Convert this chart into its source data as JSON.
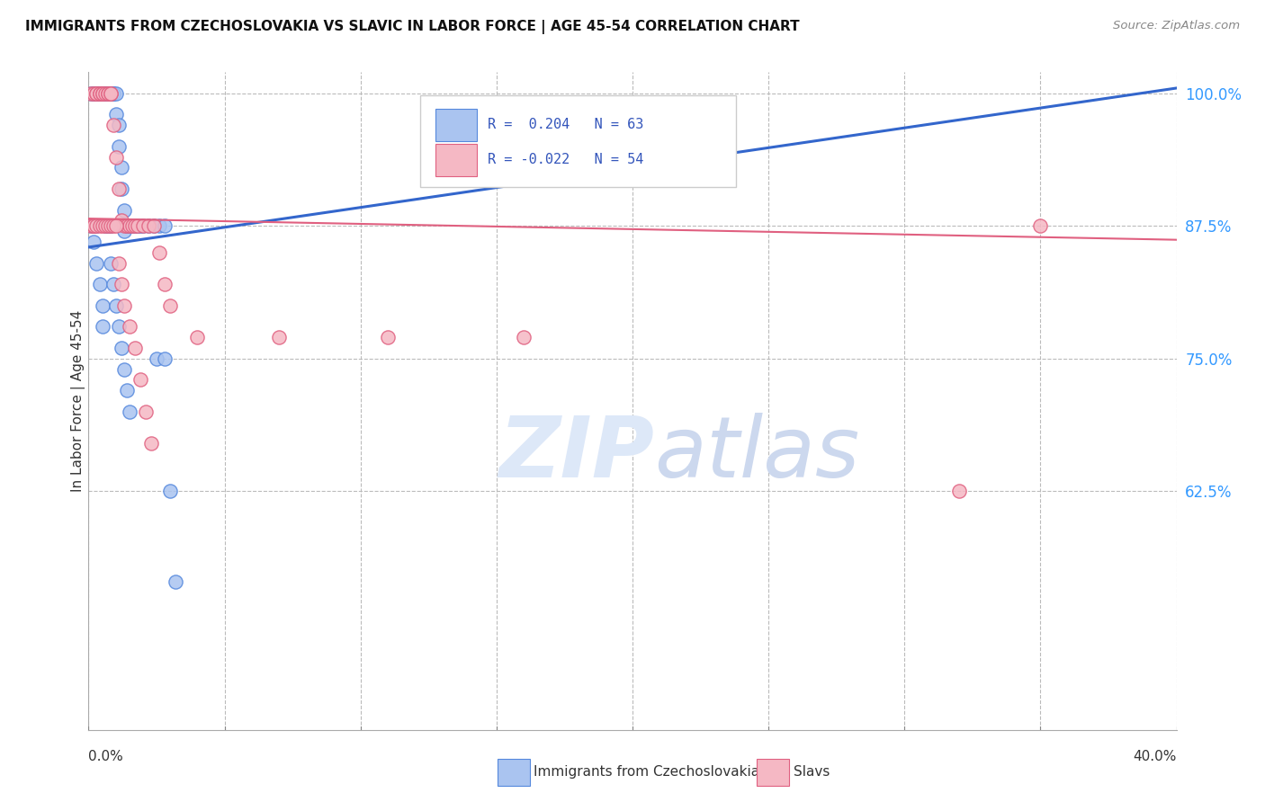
{
  "title": "IMMIGRANTS FROM CZECHOSLOVAKIA VS SLAVIC IN LABOR FORCE | AGE 45-54 CORRELATION CHART",
  "source": "Source: ZipAtlas.com",
  "ylabel": "In Labor Force | Age 45-54",
  "right_ytick_vals": [
    1.0,
    0.875,
    0.75,
    0.625
  ],
  "right_ytick_labels": [
    "100.0%",
    "87.5%",
    "75.0%",
    "62.5%"
  ],
  "xmin": 0.0,
  "xmax": 0.4,
  "ymin": 0.4,
  "ymax": 1.02,
  "legend_r1": "R =  0.204",
  "legend_n1": "N = 63",
  "legend_r2": "R = -0.022",
  "legend_n2": "N = 54",
  "blue_fill": "#aac4f0",
  "blue_edge": "#5588dd",
  "pink_fill": "#f5b8c4",
  "pink_edge": "#e06080",
  "blue_line_color": "#3366cc",
  "pink_line_color": "#e06080",
  "blue_scatter_x": [
    0.001,
    0.002,
    0.002,
    0.003,
    0.003,
    0.003,
    0.004,
    0.004,
    0.004,
    0.005,
    0.005,
    0.005,
    0.006,
    0.006,
    0.007,
    0.007,
    0.007,
    0.008,
    0.008,
    0.009,
    0.009,
    0.01,
    0.01,
    0.011,
    0.011,
    0.012,
    0.012,
    0.013,
    0.013,
    0.014,
    0.015,
    0.016,
    0.017,
    0.018,
    0.019,
    0.02,
    0.022,
    0.024,
    0.026,
    0.028,
    0.001,
    0.002,
    0.002,
    0.003,
    0.003,
    0.004,
    0.005,
    0.005,
    0.006,
    0.007,
    0.008,
    0.008,
    0.009,
    0.01,
    0.011,
    0.012,
    0.013,
    0.014,
    0.015,
    0.025,
    0.028,
    0.03,
    0.032
  ],
  "blue_scatter_y": [
    1.0,
    1.0,
    1.0,
    1.0,
    1.0,
    1.0,
    1.0,
    1.0,
    1.0,
    1.0,
    1.0,
    1.0,
    1.0,
    1.0,
    1.0,
    1.0,
    1.0,
    1.0,
    1.0,
    1.0,
    1.0,
    1.0,
    0.98,
    0.97,
    0.95,
    0.93,
    0.91,
    0.89,
    0.87,
    0.875,
    0.875,
    0.875,
    0.875,
    0.875,
    0.875,
    0.875,
    0.875,
    0.875,
    0.875,
    0.875,
    0.875,
    0.875,
    0.86,
    0.875,
    0.84,
    0.82,
    0.8,
    0.78,
    0.875,
    0.875,
    0.875,
    0.84,
    0.82,
    0.8,
    0.78,
    0.76,
    0.74,
    0.72,
    0.7,
    0.75,
    0.75,
    0.625,
    0.54
  ],
  "pink_scatter_x": [
    0.001,
    0.002,
    0.003,
    0.003,
    0.004,
    0.004,
    0.005,
    0.005,
    0.006,
    0.007,
    0.007,
    0.008,
    0.008,
    0.009,
    0.01,
    0.011,
    0.012,
    0.013,
    0.014,
    0.015,
    0.016,
    0.017,
    0.018,
    0.02,
    0.022,
    0.024,
    0.026,
    0.028,
    0.03,
    0.001,
    0.002,
    0.002,
    0.003,
    0.004,
    0.005,
    0.006,
    0.007,
    0.008,
    0.009,
    0.01,
    0.011,
    0.012,
    0.013,
    0.015,
    0.017,
    0.019,
    0.021,
    0.023,
    0.04,
    0.07,
    0.11,
    0.16,
    0.32,
    0.35
  ],
  "pink_scatter_y": [
    1.0,
    1.0,
    1.0,
    1.0,
    1.0,
    1.0,
    1.0,
    1.0,
    1.0,
    1.0,
    1.0,
    1.0,
    1.0,
    0.97,
    0.94,
    0.91,
    0.88,
    0.875,
    0.875,
    0.875,
    0.875,
    0.875,
    0.875,
    0.875,
    0.875,
    0.875,
    0.85,
    0.82,
    0.8,
    0.875,
    0.875,
    0.875,
    0.875,
    0.875,
    0.875,
    0.875,
    0.875,
    0.875,
    0.875,
    0.875,
    0.84,
    0.82,
    0.8,
    0.78,
    0.76,
    0.73,
    0.7,
    0.67,
    0.77,
    0.77,
    0.77,
    0.77,
    0.625,
    0.875
  ],
  "blue_line_x0": 0.0,
  "blue_line_x1": 0.4,
  "blue_line_y0": 0.855,
  "blue_line_y1": 1.005,
  "pink_line_x0": 0.0,
  "pink_line_x1": 0.4,
  "pink_line_y0": 0.882,
  "pink_line_y1": 0.862
}
